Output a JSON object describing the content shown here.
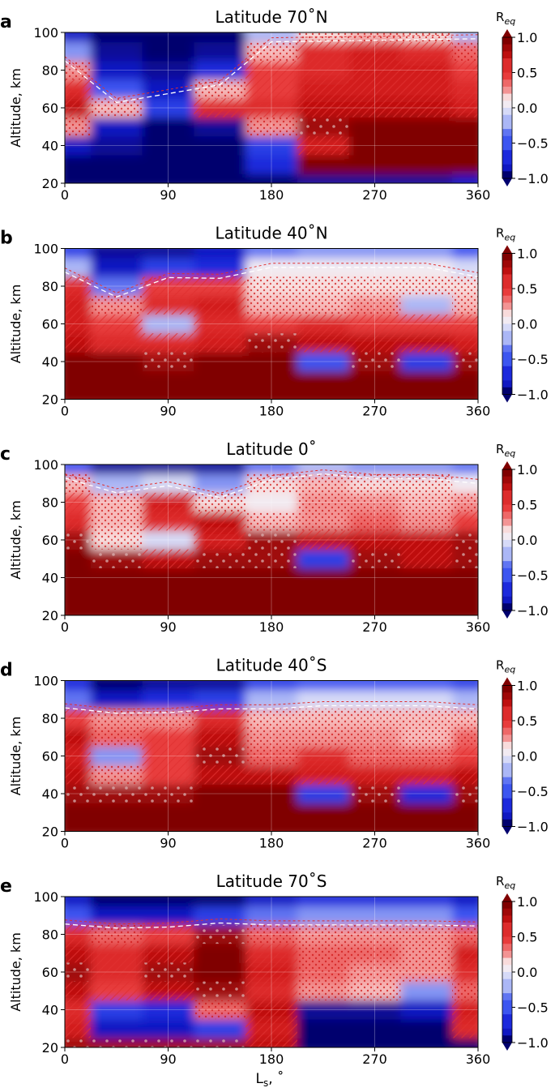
{
  "figure": {
    "colorbar_label": "R",
    "colorbar_label_sub": "eq",
    "xlabel": "L",
    "xlabel_sub": "s",
    "xlabel_suffix": ", ˚",
    "ylabel": "Altitude, km",
    "colorbar_ticks": [
      "1.0",
      "0.5",
      "0.0",
      "−0.5",
      "−1.0"
    ],
    "colors": {
      "deep_red": "#800000",
      "red": "#e0191c",
      "light_red": "#f5a3a3",
      "white": "#f4f0f0",
      "light_blue": "#a9b2f3",
      "blue": "#2a3fe6",
      "deep_blue": "#00007a",
      "hatch": "#e03030",
      "dots_red": "#d01818",
      "dots_white": "#d8b0b0",
      "contour_dashed": "#ffffff"
    }
  },
  "chart_data": [
    {
      "type": "heatmap",
      "panel_label": "a",
      "title": "Latitude 70˚N",
      "x": [
        0,
        45,
        90,
        135,
        180,
        225,
        270,
        315,
        360
      ],
      "y": [
        20,
        30,
        40,
        50,
        60,
        70,
        80,
        90,
        100
      ],
      "xticks": [
        "0",
        "90",
        "180",
        "270",
        "360"
      ],
      "yticks": [
        "20",
        "40",
        "60",
        "80",
        "100"
      ],
      "xlim": [
        0,
        360
      ],
      "ylim": [
        20,
        100
      ],
      "clim": [
        -1,
        1
      ],
      "z": [
        [
          -1.0,
          -1.0,
          -1.0,
          -1.0,
          -1.0,
          -0.9,
          -0.9,
          -0.9,
          -0.8
        ],
        [
          -1.0,
          -1.0,
          -1.0,
          -1.0,
          -0.7,
          1.0,
          1.0,
          1.0,
          1.0
        ],
        [
          -0.8,
          -0.9,
          -1.0,
          -1.0,
          -0.6,
          0.7,
          1.0,
          1.0,
          1.0
        ],
        [
          0.3,
          -0.8,
          -1.0,
          -0.9,
          0.3,
          0.9,
          1.0,
          1.0,
          1.0
        ],
        [
          0.8,
          0.2,
          -0.6,
          0.6,
          0.6,
          0.8,
          0.8,
          0.8,
          0.7
        ],
        [
          0.6,
          -0.5,
          -0.8,
          0.2,
          0.5,
          0.7,
          0.7,
          0.7,
          0.6
        ],
        [
          0.3,
          -0.8,
          -0.9,
          -0.7,
          0.5,
          0.6,
          0.7,
          0.7,
          0.5
        ],
        [
          -0.3,
          -0.9,
          -1.0,
          -0.9,
          0.2,
          0.6,
          0.7,
          0.6,
          0.4
        ],
        [
          -0.8,
          -1.0,
          -1.0,
          -1.0,
          -0.2,
          0.1,
          0.2,
          0.1,
          -0.2
        ]
      ]
    },
    {
      "type": "heatmap",
      "panel_label": "b",
      "title": "Latitude 40˚N",
      "x": [
        0,
        45,
        90,
        135,
        180,
        225,
        270,
        315,
        360
      ],
      "y": [
        20,
        30,
        40,
        50,
        60,
        70,
        80,
        90,
        100
      ],
      "xticks": [
        "0",
        "90",
        "180",
        "270",
        "360"
      ],
      "yticks": [
        "20",
        "40",
        "60",
        "80",
        "100"
      ],
      "xlim": [
        0,
        360
      ],
      "ylim": [
        20,
        100
      ],
      "clim": [
        -1,
        1
      ],
      "z": [
        [
          1.0,
          1.0,
          1.0,
          1.0,
          1.0,
          1.0,
          1.0,
          1.0,
          1.0
        ],
        [
          1.0,
          1.0,
          1.0,
          1.0,
          1.0,
          1.0,
          1.0,
          1.0,
          1.0
        ],
        [
          1.0,
          1.0,
          0.9,
          1.0,
          1.0,
          -0.5,
          0.9,
          -0.6,
          0.9
        ],
        [
          0.8,
          0.6,
          0.6,
          0.7,
          0.9,
          0.8,
          0.8,
          0.8,
          0.7
        ],
        [
          0.7,
          0.5,
          -0.2,
          0.6,
          0.5,
          0.6,
          0.5,
          0.5,
          0.5
        ],
        [
          0.7,
          0.3,
          0.6,
          0.7,
          0.2,
          0.2,
          0.3,
          -0.2,
          0.2
        ],
        [
          0.6,
          -0.4,
          0.5,
          0.5,
          0.1,
          0.1,
          0.1,
          0.1,
          0.1
        ],
        [
          -0.2,
          -0.8,
          -0.6,
          -0.7,
          0.0,
          0.0,
          0.0,
          0.0,
          -0.1
        ],
        [
          -0.6,
          -0.9,
          -0.9,
          -0.8,
          -0.4,
          -0.3,
          -0.3,
          -0.3,
          -0.5
        ]
      ]
    },
    {
      "type": "heatmap",
      "panel_label": "c",
      "title": "Latitude 0˚",
      "x": [
        0,
        45,
        90,
        135,
        180,
        225,
        270,
        315,
        360
      ],
      "y": [
        20,
        30,
        40,
        50,
        60,
        70,
        80,
        90,
        100
      ],
      "xticks": [
        "0",
        "90",
        "180",
        "270",
        "360"
      ],
      "yticks": [
        "20",
        "40",
        "60",
        "80",
        "100"
      ],
      "xlim": [
        0,
        360
      ],
      "ylim": [
        20,
        100
      ],
      "clim": [
        -1,
        1
      ],
      "z": [
        [
          1.0,
          1.0,
          1.0,
          1.0,
          1.0,
          1.0,
          1.0,
          1.0,
          1.0
        ],
        [
          1.0,
          1.0,
          1.0,
          1.0,
          1.0,
          1.0,
          1.0,
          1.0,
          1.0
        ],
        [
          1.0,
          1.0,
          1.0,
          1.0,
          1.0,
          1.0,
          1.0,
          1.0,
          1.0
        ],
        [
          1.0,
          0.9,
          0.8,
          0.9,
          0.9,
          -0.6,
          0.9,
          0.8,
          0.9
        ],
        [
          0.9,
          0.1,
          -0.1,
          0.7,
          0.9,
          0.8,
          0.8,
          0.8,
          0.9
        ],
        [
          0.6,
          0.2,
          0.6,
          0.8,
          0.2,
          0.3,
          0.4,
          0.3,
          0.5
        ],
        [
          0.5,
          0.2,
          0.7,
          0.1,
          0.0,
          0.3,
          0.3,
          0.2,
          0.3
        ],
        [
          0.2,
          -0.2,
          -0.1,
          -0.3,
          0.1,
          0.2,
          0.1,
          0.1,
          0.0
        ],
        [
          -0.5,
          -0.9,
          -0.9,
          -0.9,
          -0.4,
          -0.2,
          -0.3,
          -0.3,
          -0.4
        ]
      ]
    },
    {
      "type": "heatmap",
      "panel_label": "d",
      "title": "Latitude 40˚S",
      "x": [
        0,
        45,
        90,
        135,
        180,
        225,
        270,
        315,
        360
      ],
      "y": [
        20,
        30,
        40,
        50,
        60,
        70,
        80,
        90,
        100
      ],
      "xticks": [
        "0",
        "90",
        "180",
        "270",
        "360"
      ],
      "yticks": [
        "20",
        "40",
        "60",
        "80",
        "100"
      ],
      "xlim": [
        0,
        360
      ],
      "ylim": [
        20,
        100
      ],
      "clim": [
        -1,
        1
      ],
      "z": [
        [
          1.0,
          1.0,
          1.0,
          1.0,
          1.0,
          1.0,
          1.0,
          1.0,
          1.0
        ],
        [
          1.0,
          1.0,
          1.0,
          1.0,
          1.0,
          1.0,
          1.0,
          1.0,
          1.0
        ],
        [
          0.9,
          0.9,
          0.9,
          1.0,
          1.0,
          -0.6,
          0.9,
          -0.7,
          0.9
        ],
        [
          0.8,
          0.3,
          0.5,
          0.8,
          0.8,
          0.7,
          0.7,
          0.7,
          0.8
        ],
        [
          0.7,
          -0.3,
          0.5,
          0.9,
          0.4,
          0.6,
          0.4,
          0.4,
          0.5
        ],
        [
          0.8,
          0.4,
          0.5,
          0.8,
          0.3,
          0.3,
          0.3,
          0.2,
          0.4
        ],
        [
          0.5,
          0.3,
          0.3,
          0.6,
          0.2,
          0.2,
          0.2,
          0.2,
          0.2
        ],
        [
          -0.4,
          -0.8,
          -0.7,
          -0.6,
          -0.2,
          -0.1,
          -0.1,
          -0.1,
          -0.2
        ],
        [
          -0.7,
          -1.0,
          -0.9,
          -0.9,
          -0.6,
          -0.5,
          -0.5,
          -0.5,
          -0.6
        ]
      ]
    },
    {
      "type": "heatmap",
      "panel_label": "e",
      "title": "Latitude 70˚S",
      "x": [
        0,
        45,
        90,
        135,
        180,
        225,
        270,
        315,
        360
      ],
      "y": [
        20,
        30,
        40,
        50,
        60,
        70,
        80,
        90,
        100
      ],
      "xticks": [
        "0",
        "90",
        "180",
        "270",
        "360"
      ],
      "yticks": [
        "20",
        "40",
        "60",
        "80",
        "100"
      ],
      "xlim": [
        0,
        360
      ],
      "ylim": [
        20,
        100
      ],
      "clim": [
        -1,
        1
      ],
      "z": [
        [
          0.9,
          0.9,
          0.9,
          0.9,
          0.8,
          -1.0,
          -1.0,
          -1.0,
          -1.0
        ],
        [
          0.7,
          -0.8,
          -0.8,
          -0.6,
          0.7,
          -1.0,
          -1.0,
          -1.0,
          0.6
        ],
        [
          0.6,
          -0.6,
          -0.7,
          0.4,
          0.8,
          -0.9,
          -0.9,
          -0.8,
          0.7
        ],
        [
          0.8,
          0.5,
          0.8,
          0.9,
          0.6,
          0.3,
          0.2,
          -0.3,
          0.4
        ],
        [
          0.9,
          0.6,
          0.9,
          1.0,
          0.7,
          0.4,
          0.3,
          0.3,
          0.6
        ],
        [
          0.8,
          0.6,
          0.8,
          1.0,
          0.6,
          0.4,
          0.4,
          0.3,
          0.7
        ],
        [
          0.6,
          0.4,
          0.5,
          0.9,
          0.4,
          0.3,
          0.3,
          0.3,
          0.4
        ],
        [
          -0.5,
          -0.8,
          -0.8,
          -0.6,
          -0.4,
          -0.3,
          -0.3,
          -0.3,
          -0.5
        ],
        [
          -0.8,
          -1.0,
          -1.0,
          -1.0,
          -0.8,
          -0.7,
          -0.7,
          -0.7,
          -0.8
        ]
      ]
    }
  ]
}
